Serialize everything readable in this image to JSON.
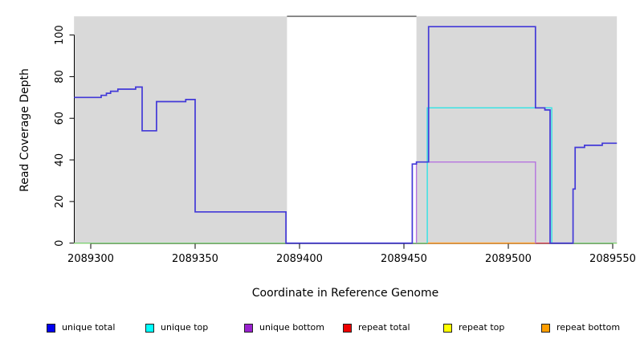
{
  "figure": {
    "x_axis_title": "Coordinate in Reference Genome",
    "y_axis_title": "Read Coverage Depth"
  },
  "legend": {
    "items": [
      {
        "label": "unique total",
        "color": "#0000EE"
      },
      {
        "label": "unique top",
        "color": "#00FFFF"
      },
      {
        "label": "unique bottom",
        "color": "#9A22CF"
      },
      {
        "label": "repeat total",
        "color": "#EE0000"
      },
      {
        "label": "repeat top",
        "color": "#FFFF00"
      },
      {
        "label": "repeat bottom",
        "color": "#FF9E00"
      }
    ]
  },
  "chart_data": {
    "type": "line",
    "title": "",
    "xlabel": "Coordinate in Reference Genome",
    "ylabel": "Read Coverage Depth",
    "xlim": [
      2089292,
      2089552
    ],
    "ylim": [
      0,
      109
    ],
    "x_ticks": [
      2089300,
      2089350,
      2089400,
      2089450,
      2089500,
      2089550
    ],
    "y_ticks": [
      0,
      20,
      40,
      60,
      80,
      100
    ],
    "grid": false,
    "legend_position": "bottom",
    "plot_bg": "#FFFFFF",
    "covered_color": "#D9D9D9",
    "covered_regions": [
      {
        "x0": 2089292,
        "x1": 2089394
      },
      {
        "x0": 2089456,
        "x1": 2089552
      }
    ],
    "gap_region": {
      "x0": 2089394,
      "x1": 2089456,
      "border_color": "#6E6E6E"
    },
    "zero_baseline": {
      "color": "#7FD07F"
    },
    "series": [
      {
        "name": "unique total",
        "line_color": "#4239D8",
        "line_width": 1.7,
        "points": [
          [
            2089292,
            70
          ],
          [
            2089305,
            70
          ],
          [
            2089305,
            71
          ],
          [
            2089307.5,
            71
          ],
          [
            2089307.5,
            72
          ],
          [
            2089309.5,
            72
          ],
          [
            2089309.5,
            73
          ],
          [
            2089313,
            73
          ],
          [
            2089313,
            74
          ],
          [
            2089321.5,
            74
          ],
          [
            2089321.5,
            75
          ],
          [
            2089324.6,
            75
          ],
          [
            2089324.6,
            54
          ],
          [
            2089331.5,
            54
          ],
          [
            2089331.5,
            68
          ],
          [
            2089345.5,
            68
          ],
          [
            2089345.5,
            69
          ],
          [
            2089350,
            69
          ],
          [
            2089350,
            15
          ],
          [
            2089393.5,
            15
          ],
          [
            2089393.5,
            0
          ],
          [
            2089454,
            0
          ],
          [
            2089454,
            38
          ],
          [
            2089456,
            38
          ],
          [
            2089456,
            39
          ],
          [
            2089461.8,
            39
          ],
          [
            2089461.8,
            104
          ],
          [
            2089513,
            104
          ],
          [
            2089513,
            65
          ],
          [
            2089517.5,
            65
          ],
          [
            2089517.5,
            64
          ],
          [
            2089520,
            64
          ],
          [
            2089520,
            0
          ],
          [
            2089531,
            0
          ],
          [
            2089531,
            26
          ],
          [
            2089532,
            26
          ],
          [
            2089532,
            46
          ],
          [
            2089536.5,
            46
          ],
          [
            2089536.5,
            47
          ],
          [
            2089545,
            47
          ],
          [
            2089545,
            48
          ],
          [
            2089552,
            48
          ]
        ]
      },
      {
        "name": "unique top",
        "line_color": "#3BE2E4",
        "line_width": 1.5,
        "points": [
          [
            2089461.2,
            0
          ],
          [
            2089461.2,
            65
          ],
          [
            2089520.8,
            65
          ],
          [
            2089520.8,
            0
          ]
        ]
      },
      {
        "name": "unique bottom",
        "line_color": "#B573DF",
        "line_width": 1.4,
        "points": [
          [
            2089456,
            0
          ],
          [
            2089456,
            39
          ],
          [
            2089513,
            39
          ],
          [
            2089513,
            0
          ]
        ]
      },
      {
        "name": "repeat total",
        "line_color": "#E04A5F",
        "line_width": 1.4,
        "points": [
          [
            2089513,
            0
          ],
          [
            2089520.8,
            0
          ]
        ]
      },
      {
        "name": "repeat top",
        "line_color": "#FFFF00",
        "line_width": 1.2,
        "points": [
          [
            2089292,
            0
          ],
          [
            2089552,
            0
          ]
        ]
      },
      {
        "name": "repeat bottom",
        "line_color": "#FF9E2C",
        "line_width": 1.7,
        "points": [
          [
            2089461.2,
            0
          ],
          [
            2089513,
            0
          ]
        ]
      }
    ]
  }
}
